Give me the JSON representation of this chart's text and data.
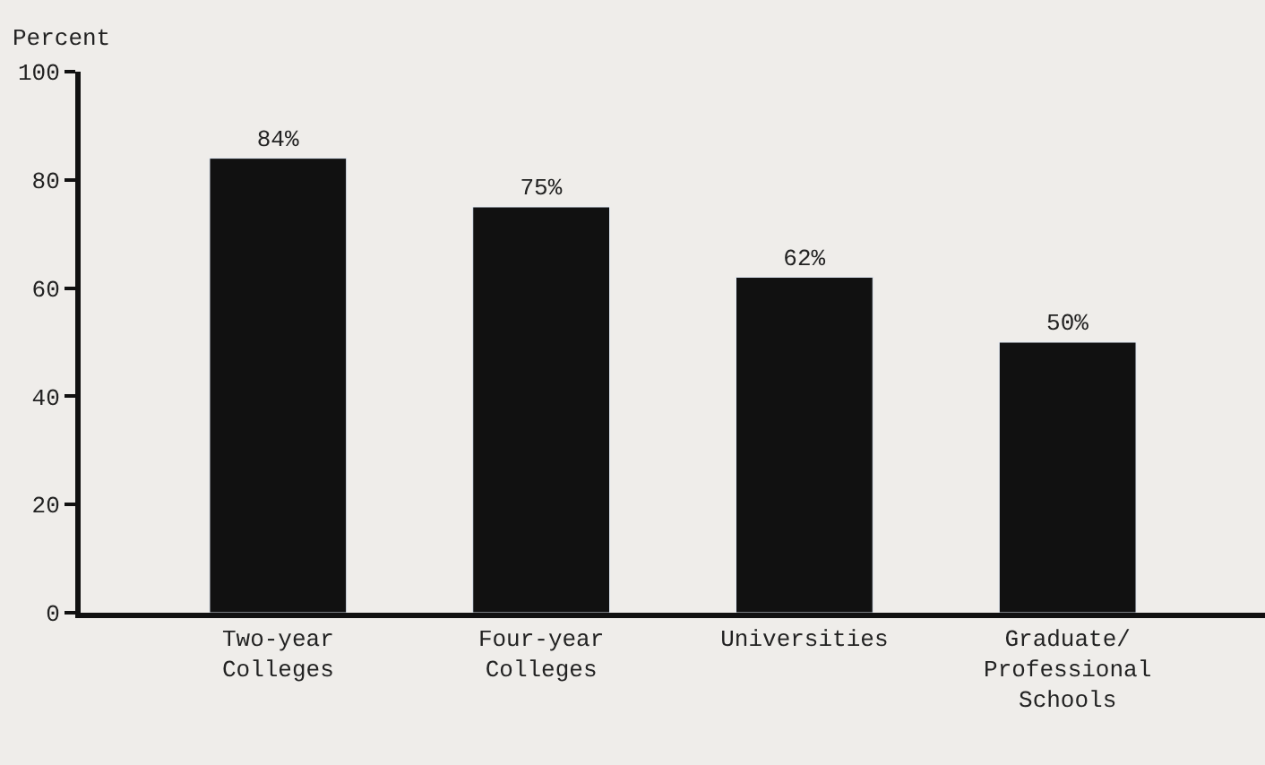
{
  "chart_data": {
    "type": "bar",
    "ylabel": "Percent",
    "categories": [
      "Two-year\nColleges",
      "Four-year\nColleges",
      "Universities",
      "Graduate/\nProfessional\nSchools"
    ],
    "values": [
      84,
      75,
      62,
      50
    ],
    "value_labels": [
      "84%",
      "75%",
      "62%",
      "50%"
    ],
    "color": "#111111",
    "ylim": [
      0,
      100
    ],
    "yticks": [
      0,
      20,
      40,
      60,
      80,
      100
    ],
    "grid": false,
    "legend": false
  }
}
